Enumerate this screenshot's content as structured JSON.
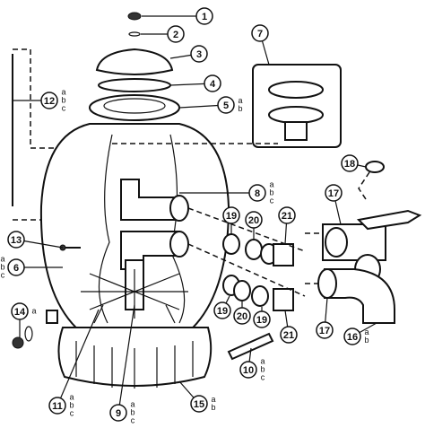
{
  "callouts": [
    {
      "label": "1"
    },
    {
      "label": "2"
    },
    {
      "label": "3"
    },
    {
      "label": "4"
    },
    {
      "label": "5",
      "suffixes": [
        "a",
        "b"
      ]
    },
    {
      "label": "7"
    },
    {
      "label": "12",
      "suffixes": [
        "a",
        "b",
        "c"
      ]
    },
    {
      "label": "18"
    },
    {
      "label": "8",
      "suffixes": [
        "a",
        "b",
        "c"
      ]
    },
    {
      "label": "17"
    },
    {
      "label": "19"
    },
    {
      "label": "20"
    },
    {
      "label": "21"
    },
    {
      "label": "13"
    },
    {
      "label": "6",
      "suffixes": [
        "a",
        "b",
        "c"
      ]
    },
    {
      "label": "19"
    },
    {
      "label": "20"
    },
    {
      "label": "19"
    },
    {
      "label": "21"
    },
    {
      "label": "17"
    },
    {
      "label": "14",
      "suffixes": [
        "a"
      ]
    },
    {
      "label": "16",
      "suffixes": [
        "a",
        "b"
      ]
    },
    {
      "label": "10",
      "suffixes": [
        "a",
        "b",
        "c"
      ]
    },
    {
      "label": "15",
      "suffixes": [
        "a",
        "b"
      ]
    },
    {
      "label": "11",
      "suffixes": [
        "a",
        "b",
        "c"
      ]
    },
    {
      "label": "9",
      "suffixes": [
        "a",
        "b",
        "c"
      ]
    }
  ]
}
